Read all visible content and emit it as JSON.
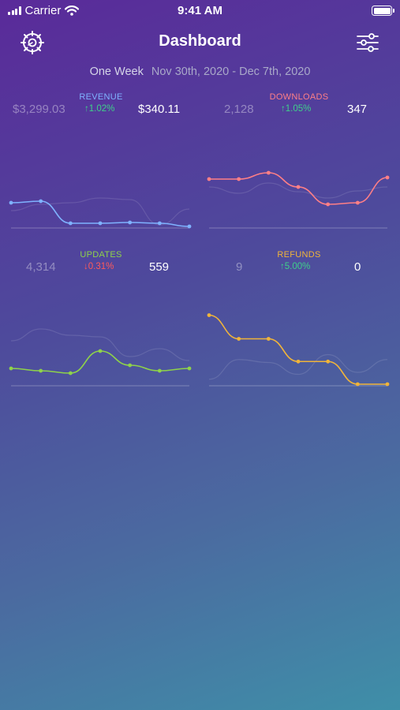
{
  "status_bar": {
    "carrier": "Carrier",
    "time": "9:41 AM"
  },
  "nav": {
    "title": "Dashboard",
    "left_icon": "settings-gear-icon",
    "right_icon": "sliders-icon"
  },
  "period": {
    "name": "One Week",
    "range": "Nov 30th, 2020 - Dec 7th, 2020"
  },
  "colors": {
    "revenue": "#7fb2ff",
    "downloads": "#ff7f86",
    "updates": "#8ed24a",
    "refunds": "#f0b43a",
    "up": "#3fd08a",
    "down": "#ff5a5a"
  },
  "metrics": [
    {
      "label": "REVENUE",
      "previous": "$3,299.03",
      "change": "↑1.02%",
      "direction": "up",
      "current": "$340.11"
    },
    {
      "label": "DOWNLOADS",
      "previous": "2,128",
      "change": "↑1.05%",
      "direction": "up",
      "current": "347"
    },
    {
      "label": "UPDATES",
      "previous": "4,314",
      "change": "↓0.31%",
      "direction": "down",
      "current": "559"
    },
    {
      "label": "REFUNDS",
      "previous": "9",
      "change": "↑5.00%",
      "direction": "up",
      "current": "0"
    }
  ],
  "chart_data": [
    {
      "type": "line",
      "name": "REVENUE",
      "x": [
        1,
        2,
        3,
        4,
        5,
        6,
        7
      ],
      "series": [
        {
          "values": [
            0.3,
            0.32,
            0.04,
            0.04,
            0.05,
            0.04,
            0.0
          ]
        },
        {
          "values": [
            0.2,
            0.28,
            0.3,
            0.36,
            0.34,
            0.02,
            0.22
          ]
        }
      ],
      "ylim": [
        0,
        1
      ]
    },
    {
      "type": "line",
      "name": "DOWNLOADS",
      "x": [
        1,
        2,
        3,
        4,
        5,
        6,
        7
      ],
      "series": [
        {
          "values": [
            0.6,
            0.6,
            0.68,
            0.5,
            0.28,
            0.3,
            0.62
          ]
        },
        {
          "values": [
            0.5,
            0.42,
            0.55,
            0.44,
            0.36,
            0.45,
            0.5
          ]
        }
      ],
      "ylim": [
        0,
        1
      ]
    },
    {
      "type": "line",
      "name": "UPDATES",
      "x": [
        1,
        2,
        3,
        4,
        5,
        6,
        7
      ],
      "series": [
        {
          "values": [
            0.2,
            0.17,
            0.14,
            0.42,
            0.24,
            0.17,
            0.2
          ]
        },
        {
          "values": [
            0.55,
            0.7,
            0.62,
            0.6,
            0.35,
            0.45,
            0.3
          ]
        }
      ],
      "ylim": [
        0,
        1
      ]
    },
    {
      "type": "line",
      "name": "REFUNDS",
      "x": [
        1,
        2,
        3,
        4,
        5,
        6,
        7
      ],
      "series": [
        {
          "values": [
            0.7,
            0.46,
            0.46,
            0.23,
            0.23,
            0.0,
            0.0
          ]
        },
        {
          "values": [
            0.05,
            0.25,
            0.22,
            0.1,
            0.3,
            0.12,
            0.25
          ]
        }
      ],
      "ylim": [
        0,
        0.8
      ]
    }
  ]
}
